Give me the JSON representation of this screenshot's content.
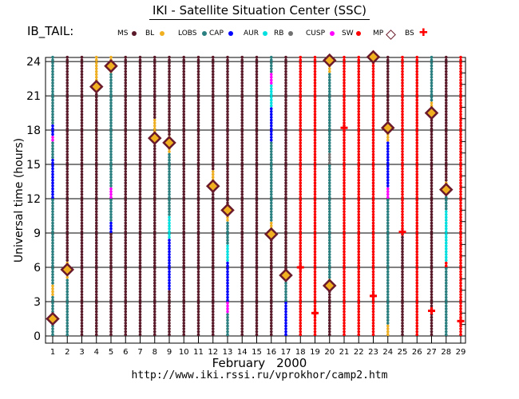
{
  "header": {
    "title": "IKI - Satellite Situation Center (SSC)",
    "series_label": "IB_TAIL:"
  },
  "footer": {
    "month": "February",
    "year": "2000",
    "url": "http://www.iki.rssi.ru/vprokhor/camp2.htm"
  },
  "legend": [
    {
      "label": "MS",
      "color": "#5a1a2a",
      "marker": "dot"
    },
    {
      "label": "BL",
      "color": "#f0b020",
      "marker": "dot"
    },
    {
      "label": "LOBS",
      "color": "#2a8080",
      "marker": "dot"
    },
    {
      "label": "CAP",
      "color": "#0000ff",
      "marker": "dot"
    },
    {
      "label": "AUR",
      "color": "#00e0e0",
      "marker": "dot"
    },
    {
      "label": "RB",
      "color": "#707070",
      "marker": "dot"
    },
    {
      "label": "CUSP",
      "color": "#ff00ff",
      "marker": "dot"
    },
    {
      "label": "SW",
      "color": "#ff0000",
      "marker": "dot"
    },
    {
      "label": "MP",
      "color": "#6a1a2a",
      "marker": "diamond"
    },
    {
      "label": "BS",
      "color": "#ff0000",
      "marker": "cross"
    }
  ],
  "chart_data": {
    "type": "scatter",
    "title": "IKI - Satellite Situation Center (SSC)",
    "xlabel": "February   2000",
    "ylabel": "Universal time (hours)",
    "x_ticks": [
      1,
      2,
      3,
      4,
      5,
      6,
      7,
      8,
      9,
      10,
      11,
      12,
      13,
      14,
      15,
      16,
      17,
      18,
      19,
      20,
      21,
      22,
      23,
      24,
      25,
      26,
      27,
      28,
      29
    ],
    "y_ticks": [
      0,
      3,
      6,
      9,
      12,
      15,
      18,
      21,
      24
    ],
    "ylim": [
      0,
      24.5
    ],
    "grid": true,
    "day_columns": [
      {
        "day": 1,
        "segments": [
          [
            "#2a8080",
            0,
            3.5
          ],
          [
            "#f0b020",
            3.5,
            4.5
          ],
          [
            "#2a8080",
            4.5,
            12
          ],
          [
            "#0000ff",
            12,
            15.5
          ],
          [
            "#2a8080",
            15.5,
            17
          ],
          [
            "#ff00ff",
            17,
            17.5
          ],
          [
            "#0000ff",
            17.5,
            18.5
          ],
          [
            "#2a8080",
            18.5,
            24.5
          ]
        ]
      },
      {
        "day": 2,
        "segments": [
          [
            "#2a8080",
            0,
            5
          ],
          [
            "#f0b020",
            5,
            6.5
          ],
          [
            "#5a1a2a",
            6.5,
            24.5
          ]
        ]
      },
      {
        "day": 3,
        "segments": [
          [
            "#5a1a2a",
            0,
            24.5
          ]
        ]
      },
      {
        "day": 4,
        "segments": [
          [
            "#5a1a2a",
            0,
            21.5
          ],
          [
            "#f0b020",
            21.5,
            24.5
          ]
        ]
      },
      {
        "day": 5,
        "segments": [
          [
            "#5a1a2a",
            0,
            9
          ],
          [
            "#0000ff",
            9,
            10
          ],
          [
            "#2a8080",
            10,
            12
          ],
          [
            "#ff00ff",
            12,
            13
          ],
          [
            "#2a8080",
            13,
            23
          ],
          [
            "#f0b020",
            23,
            24.5
          ]
        ]
      },
      {
        "day": 6,
        "segments": [
          [
            "#5a1a2a",
            0,
            24.5
          ]
        ]
      },
      {
        "day": 7,
        "segments": [
          [
            "#5a1a2a",
            0,
            24.5
          ]
        ]
      },
      {
        "day": 8,
        "segments": [
          [
            "#5a1a2a",
            0,
            17.5
          ],
          [
            "#f0b020",
            17.5,
            19
          ],
          [
            "#5a1a2a",
            19,
            24.5
          ]
        ]
      },
      {
        "day": 9,
        "segments": [
          [
            "#5a1a2a",
            0,
            4
          ],
          [
            "#0000ff",
            4,
            8.5
          ],
          [
            "#00e0e0",
            8.5,
            10.5
          ],
          [
            "#2a8080",
            10.5,
            16
          ],
          [
            "#f0b020",
            16,
            17.5
          ],
          [
            "#5a1a2a",
            17.5,
            24.5
          ]
        ]
      },
      {
        "day": 10,
        "segments": [
          [
            "#5a1a2a",
            0,
            24.5
          ]
        ]
      },
      {
        "day": 11,
        "segments": [
          [
            "#5a1a2a",
            0,
            24.5
          ]
        ]
      },
      {
        "day": 12,
        "segments": [
          [
            "#5a1a2a",
            0,
            13
          ],
          [
            "#f0b020",
            13,
            14.5
          ],
          [
            "#5a1a2a",
            14.5,
            24.5
          ]
        ]
      },
      {
        "day": 13,
        "segments": [
          [
            "#2a8080",
            0,
            2
          ],
          [
            "#ff00ff",
            2,
            3
          ],
          [
            "#0000ff",
            3,
            6.5
          ],
          [
            "#00e0e0",
            6.5,
            8
          ],
          [
            "#2a8080",
            8,
            10
          ],
          [
            "#f0b020",
            10,
            11
          ],
          [
            "#5a1a2a",
            11,
            24.5
          ]
        ]
      },
      {
        "day": 14,
        "segments": [
          [
            "#5a1a2a",
            0,
            24.5
          ]
        ]
      },
      {
        "day": 15,
        "segments": [
          [
            "#5a1a2a",
            0,
            24.5
          ]
        ]
      },
      {
        "day": 16,
        "segments": [
          [
            "#5a1a2a",
            0,
            9
          ],
          [
            "#f0b020",
            9,
            10
          ],
          [
            "#2a8080",
            10,
            17
          ],
          [
            "#0000ff",
            17,
            20
          ],
          [
            "#00e0e0",
            20,
            22
          ],
          [
            "#ff00ff",
            22,
            23
          ],
          [
            "#2a8080",
            23,
            24.5
          ]
        ]
      },
      {
        "day": 17,
        "segments": [
          [
            "#0000ff",
            0,
            3
          ],
          [
            "#2a8080",
            3,
            5
          ],
          [
            "#f0b020",
            5,
            5.5
          ],
          [
            "#5a1a2a",
            5.5,
            24.5
          ]
        ]
      },
      {
        "day": 18,
        "segments": [
          [
            "#ff0000",
            0,
            24.5
          ]
        ]
      },
      {
        "day": 19,
        "segments": [
          [
            "#ff0000",
            0,
            24.5
          ]
        ]
      },
      {
        "day": 20,
        "segments": [
          [
            "#5a1a2a",
            0,
            4
          ],
          [
            "#f0b020",
            4,
            5
          ],
          [
            "#2a8080",
            5,
            15
          ],
          [
            "#707070",
            15,
            16
          ],
          [
            "#2a8080",
            16,
            23
          ],
          [
            "#f0b020",
            23,
            24.5
          ]
        ]
      },
      {
        "day": 21,
        "segments": [
          [
            "#ff0000",
            0,
            24.5
          ]
        ]
      },
      {
        "day": 22,
        "segments": [
          [
            "#ff0000",
            0,
            24.5
          ]
        ]
      },
      {
        "day": 23,
        "segments": [
          [
            "#ff0000",
            0,
            24.5
          ]
        ]
      },
      {
        "day": 24,
        "segments": [
          [
            "#f0b020",
            0,
            1
          ],
          [
            "#2a8080",
            1,
            12
          ],
          [
            "#ff00ff",
            12,
            13
          ],
          [
            "#0000ff",
            13,
            17
          ],
          [
            "#f0b020",
            17,
            18
          ],
          [
            "#5a1a2a",
            18,
            24.5
          ]
        ]
      },
      {
        "day": 25,
        "segments": [
          [
            "#5a1a2a",
            0,
            9
          ],
          [
            "#ff0000",
            9,
            24.5
          ]
        ]
      },
      {
        "day": 26,
        "segments": [
          [
            "#ff0000",
            0,
            24.5
          ]
        ]
      },
      {
        "day": 27,
        "segments": [
          [
            "#5a1a2a",
            0,
            19.5
          ],
          [
            "#f0b020",
            19.5,
            20.5
          ],
          [
            "#2a8080",
            20.5,
            24.5
          ]
        ]
      },
      {
        "day": 28,
        "segments": [
          [
            "#2a8080",
            0,
            6
          ],
          [
            "#ff0000",
            6,
            6.5
          ],
          [
            "#00e0e0",
            6.5,
            11
          ],
          [
            "#2a8080",
            11,
            13
          ],
          [
            "#f0b020",
            13,
            13.5
          ],
          [
            "#5a1a2a",
            13.5,
            24.5
          ]
        ]
      },
      {
        "day": 29,
        "segments": [
          [
            "#ff0000",
            0,
            24.5
          ]
        ]
      }
    ],
    "mp_crossings": [
      {
        "day": 1,
        "ut": 1.5
      },
      {
        "day": 2,
        "ut": 5.8
      },
      {
        "day": 4,
        "ut": 21.8
      },
      {
        "day": 5,
        "ut": 23.6
      },
      {
        "day": 8,
        "ut": 17.3
      },
      {
        "day": 9,
        "ut": 16.9
      },
      {
        "day": 12,
        "ut": 13.1
      },
      {
        "day": 13,
        "ut": 11.0
      },
      {
        "day": 16,
        "ut": 8.9
      },
      {
        "day": 17,
        "ut": 5.3
      },
      {
        "day": 20,
        "ut": 4.4
      },
      {
        "day": 20,
        "ut": 24.1
      },
      {
        "day": 23,
        "ut": 24.4
      },
      {
        "day": 24,
        "ut": 18.2
      },
      {
        "day": 27,
        "ut": 19.5
      },
      {
        "day": 28,
        "ut": 12.8
      }
    ],
    "bs_crossings": [
      {
        "day": 18,
        "ut": 6.0
      },
      {
        "day": 19,
        "ut": 2.0
      },
      {
        "day": 21,
        "ut": 18.2
      },
      {
        "day": 23,
        "ut": 3.5
      },
      {
        "day": 25,
        "ut": 9.1
      },
      {
        "day": 27,
        "ut": 2.2
      },
      {
        "day": 29,
        "ut": 1.3
      }
    ]
  }
}
